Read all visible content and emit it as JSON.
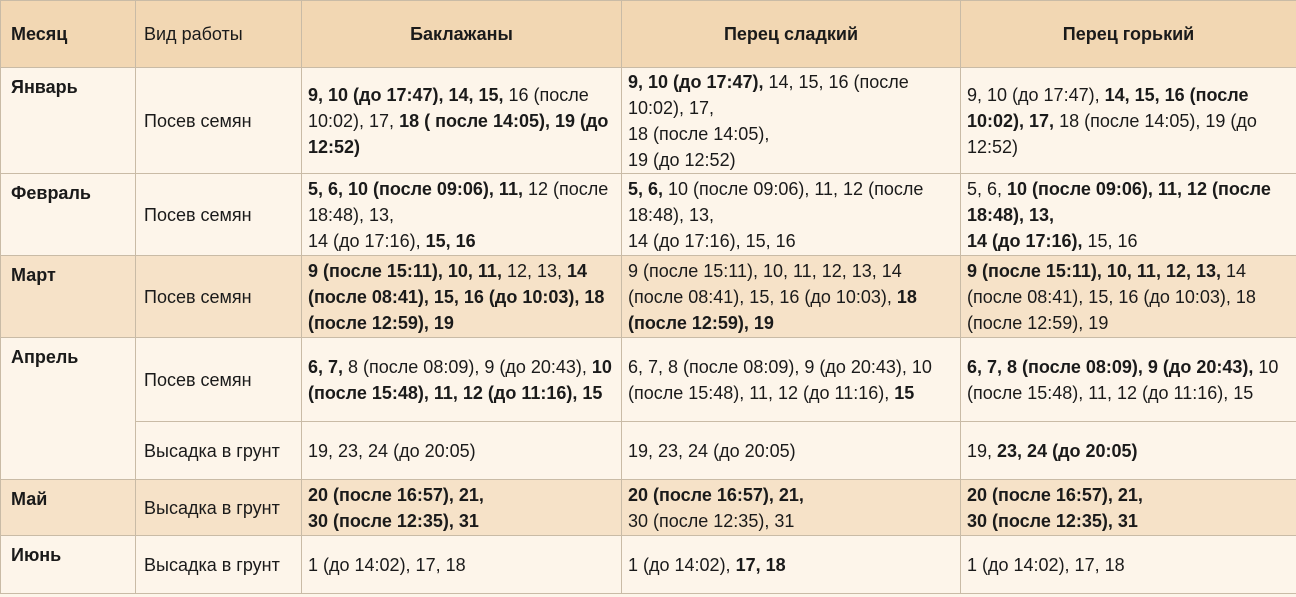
{
  "header": {
    "month": "Месяц",
    "work": "Вид работы",
    "col_a": "Баклажаны",
    "col_b": "Перец сладкий",
    "col_c": "Перец горький"
  },
  "rows": [
    {
      "month": "Январь",
      "work": "Посев семян",
      "a": [
        {
          "t": "9, 10 (до 17:47), 14, 15,",
          "b": true
        },
        {
          "t": " 16 (после 10:02), 17, ",
          "b": false
        },
        {
          "t": "18 ( после 14:05), 19 (до 12:52)",
          "b": true
        }
      ],
      "b": [
        {
          "t": "9, 10 (до 17:47),",
          "b": true
        },
        {
          "t": " 14, 15, 16 (после 10:02), 17,",
          "b": false
        },
        {
          "br": true
        },
        {
          "t": "18 (после 14:05),",
          "b": false
        },
        {
          "br": true
        },
        {
          "t": "19 (до 12:52)",
          "b": false
        }
      ],
      "c": [
        {
          "t": "9, 10 (до 17:47), ",
          "b": false
        },
        {
          "t": "14, 15, 16 (после 10:02), 17,",
          "b": true
        },
        {
          "t": " 18 (после 14:05), 19 (до 12:52)",
          "b": false
        }
      ]
    },
    {
      "month": "Февраль",
      "work": "Посев семян",
      "a": [
        {
          "t": "5, 6,  10 (после 09:06), 11,",
          "b": true
        },
        {
          "t": " 12 (после 18:48), 13,",
          "b": false
        },
        {
          "br": true
        },
        {
          "t": "14 (до 17:16), ",
          "b": false
        },
        {
          "t": "15, 16",
          "b": true
        }
      ],
      "b": [
        {
          "t": "5, 6,",
          "b": true
        },
        {
          "t": "  10 (после 09:06), 11, 12 (после 18:48), 13,",
          "b": false
        },
        {
          "br": true
        },
        {
          "t": "14 (до 17:16), 15, 16",
          "b": false
        }
      ],
      "c": [
        {
          "t": "5, 6,  ",
          "b": false
        },
        {
          "t": "10 (после 09:06), 11, 12 (после 18:48), 13,",
          "b": true
        },
        {
          "br": true
        },
        {
          "t": "14 (до 17:16),",
          "b": true
        },
        {
          "t": " 15, 16",
          "b": false
        }
      ]
    },
    {
      "month": "Март",
      "work": "Посев семян",
      "a": [
        {
          "t": "9 (после 15:11), 10, 11,",
          "b": true
        },
        {
          "t": " 12, 13, ",
          "b": false
        },
        {
          "t": "14 (после 08:41), 15, 16 (до 10:03), 18 (после 12:59), 19",
          "b": true
        }
      ],
      "b": [
        {
          "t": "9 (после 15:11), 10, 11, 12, 13, 14 (после 08:41), 15, 16 (до 10:03), ",
          "b": false
        },
        {
          "t": "18 (после 12:59), 19",
          "b": true
        }
      ],
      "c": [
        {
          "t": "9 (после 15:11), 10, 11, 12, 13,",
          "b": true
        },
        {
          "t": " 14 (после 08:41), 15, 16 (до 10:03), 18 (после 12:59), 19",
          "b": false
        }
      ]
    },
    {
      "month": "Апрель",
      "work": "Посев семян",
      "a": [
        {
          "t": "6, 7,",
          "b": true
        },
        {
          "t": " 8 (после 08:09), 9 (до 20:43), ",
          "b": false
        },
        {
          "t": "10 (после 15:48), 11, 12 (до 11:16), 15",
          "b": true
        }
      ],
      "b": [
        {
          "t": "6, 7, 8 (после 08:09), 9 (до 20:43), 10 (после 15:48), 11, 12 (до 11:16), ",
          "b": false
        },
        {
          "t": "15",
          "b": true
        }
      ],
      "c": [
        {
          "t": "6, 7, 8 (после 08:09), 9 (до 20:43),",
          "b": true
        },
        {
          "t": " 10 (после 15:48), 11, 12 (до 11:16), 15",
          "b": false
        }
      ]
    },
    {
      "month": "",
      "work": "Высадка в грунт",
      "a": [
        {
          "t": "19, 23, 24 (до 20:05)",
          "b": false
        }
      ],
      "b": [
        {
          "t": "19, 23, 24 (до 20:05)",
          "b": false
        }
      ],
      "c": [
        {
          "t": "19, ",
          "b": false
        },
        {
          "t": "23, 24 (до 20:05)",
          "b": true
        }
      ]
    },
    {
      "month": "Май",
      "work": "Высадка в грунт",
      "a": [
        {
          "t": "20 (после 16:57), 21,",
          "b": true
        },
        {
          "br": true
        },
        {
          "t": "30 (после 12:35), 31",
          "b": true
        }
      ],
      "b": [
        {
          "t": "20 (после 16:57), 21,",
          "b": true
        },
        {
          "br": true
        },
        {
          "t": "30 (после 12:35), 31",
          "b": false
        }
      ],
      "c": [
        {
          "t": "20 (после 16:57), 21,",
          "b": true
        },
        {
          "br": true
        },
        {
          "t": "30 (после 12:35), 31",
          "b": true
        }
      ]
    },
    {
      "month": "Июнь",
      "work": "Высадка в грунт",
      "a": [
        {
          "t": "1 (до 14:02), 17, 18",
          "b": false
        }
      ],
      "b": [
        {
          "t": "1 (до 14:02), ",
          "b": false
        },
        {
          "t": "17, 18",
          "b": true
        }
      ],
      "c": [
        {
          "t": "1 (до 14:02), 17, 18",
          "b": false
        }
      ]
    }
  ]
}
